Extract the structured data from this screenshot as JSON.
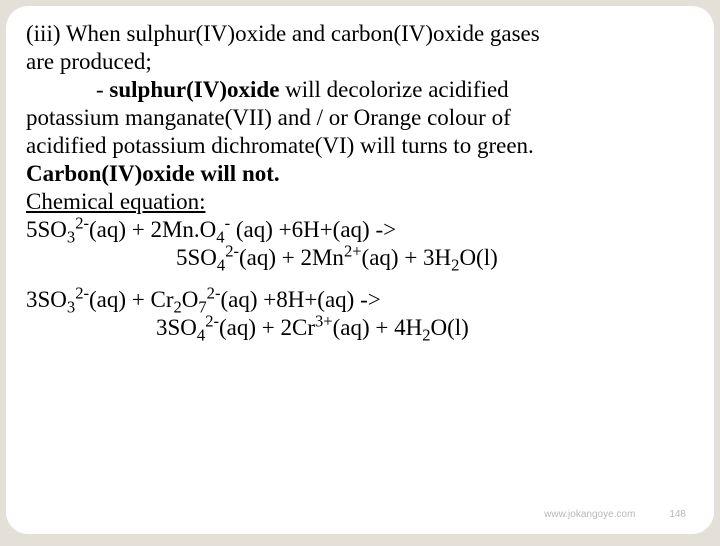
{
  "body": {
    "line1_a": "(iii) When sulphur(IV)oxide and carbon(IV)oxide gases",
    "line2": "are produced;",
    "line3_pre": "- ",
    "line3_bold": "sulphur(IV)oxide",
    "line3_post": " will decolorize acidified",
    "line4": "potassium manganate(VII)  and / or Orange colour of",
    "line5": "acidified potassium dichromate(VI) will turns to green.",
    "line6_bold": "Carbon(IV)oxide will not.",
    "chem_eq_label": "Chemical equation:",
    "eq1_l_a": "5SO",
    "eq1_l_b": "(aq) +   2Mn.O",
    "eq1_l_c": " (aq) +6H+(aq)   ->",
    "eq1_r_a": "5SO",
    "eq1_r_b": "(aq) +  2Mn",
    "eq1_r_c": "(aq) +  3H",
    "eq1_r_d": "O(l)",
    "eq2_l_a": "3SO",
    "eq2_l_b": "(aq) +   Cr",
    "eq2_l_c": "O",
    "eq2_l_d": "(aq) +8H+(aq)   ->",
    "eq2_r_a": "3SO",
    "eq2_r_b": "(aq) +  2Cr",
    "eq2_r_c": "(aq) +  4H",
    "eq2_r_d": "O(l)",
    "subs": {
      "two": "2",
      "three": "3",
      "four": "4",
      "seven": "7"
    },
    "sups": {
      "twominus": "2-",
      "minus": "-",
      "twoplus": "2+",
      "threeplus": "3+"
    }
  },
  "footer": {
    "url": "www.jokangoye.com",
    "page": "148"
  },
  "colors": {
    "page_bg": "#e4e0d7",
    "card_bg": "#ffffff",
    "text": "#000000",
    "footer": "#b8b8b8"
  }
}
